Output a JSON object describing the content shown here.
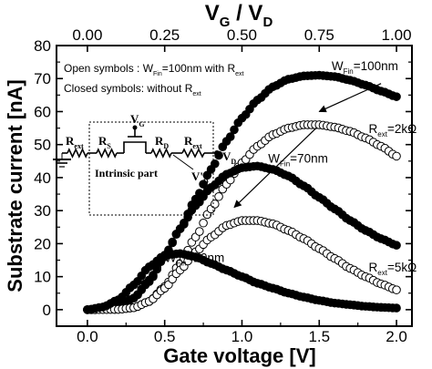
{
  "chart_data": {
    "type": "scatter",
    "xlabel": "Gate voltage [V]",
    "ylabel": "Substrate current [nA]",
    "top_axis_label": {
      "main_v1": "V",
      "sub1": "G",
      "sep": "/",
      "main_v2": "V",
      "sub2": "D"
    },
    "xlim": [
      -0.2,
      2.1
    ],
    "ylim": [
      -5,
      80
    ],
    "xticks": [
      0.0,
      0.5,
      1.0,
      1.5,
      2.0
    ],
    "xtick_labels": [
      "0.0",
      "0.5",
      "1.0",
      "1.5",
      "2.0"
    ],
    "yticks": [
      0,
      10,
      20,
      30,
      40,
      50,
      60,
      70,
      80
    ],
    "ytick_labels": [
      "0",
      "10",
      "20",
      "30",
      "40",
      "50",
      "60",
      "70",
      "80"
    ],
    "top_ticks": [
      0.0,
      0.25,
      0.5,
      0.75,
      1.0
    ],
    "top_tick_labels": [
      "0.00",
      "0.25",
      "0.50",
      "0.75",
      "1.00"
    ],
    "legend_lines": [
      {
        "text": "Open symbols  : W",
        "sub": "Fin",
        "tail": "=100nm with R",
        "sub2": "ext"
      },
      {
        "text": "Closed symbols: without R",
        "sub": "ext",
        "tail": "",
        "sub2": ""
      }
    ],
    "series": [
      {
        "fill": "closed",
        "anchors": [
          [
            0.0,
            0.0
          ],
          [
            0.1,
            0.2
          ],
          [
            0.2,
            1.0
          ],
          [
            0.3,
            3.5
          ],
          [
            0.4,
            8.5
          ],
          [
            0.5,
            16.0
          ],
          [
            0.6,
            24.5
          ],
          [
            0.7,
            33.5
          ],
          [
            0.8,
            42.5
          ],
          [
            0.9,
            51.0
          ],
          [
            1.0,
            58.0
          ],
          [
            1.1,
            63.5
          ],
          [
            1.2,
            67.5
          ],
          [
            1.3,
            69.8
          ],
          [
            1.4,
            70.8
          ],
          [
            1.5,
            71.0
          ],
          [
            1.6,
            70.6
          ],
          [
            1.7,
            69.5
          ],
          [
            1.8,
            68.0
          ],
          [
            1.9,
            66.2
          ],
          [
            2.0,
            64.5
          ]
        ]
      },
      {
        "fill": "open",
        "anchors": [
          [
            0.0,
            0.0
          ],
          [
            0.2,
            0.1
          ],
          [
            0.3,
            0.6
          ],
          [
            0.4,
            2.5
          ],
          [
            0.5,
            7.0
          ],
          [
            0.6,
            14.0
          ],
          [
            0.7,
            22.0
          ],
          [
            0.8,
            30.5
          ],
          [
            0.9,
            38.0
          ],
          [
            1.0,
            44.5
          ],
          [
            1.1,
            49.5
          ],
          [
            1.2,
            53.0
          ],
          [
            1.3,
            55.0
          ],
          [
            1.4,
            56.0
          ],
          [
            1.5,
            56.0
          ],
          [
            1.6,
            55.3
          ],
          [
            1.7,
            54.0
          ],
          [
            1.8,
            52.0
          ],
          [
            1.9,
            49.5
          ],
          [
            2.0,
            46.5
          ]
        ]
      },
      {
        "fill": "closed",
        "anchors": [
          [
            0.0,
            0.0
          ],
          [
            0.1,
            0.2
          ],
          [
            0.2,
            1.0
          ],
          [
            0.3,
            3.5
          ],
          [
            0.4,
            9.0
          ],
          [
            0.5,
            16.5
          ],
          [
            0.6,
            24.5
          ],
          [
            0.7,
            31.5
          ],
          [
            0.8,
            37.0
          ],
          [
            0.9,
            41.0
          ],
          [
            1.0,
            43.0
          ],
          [
            1.1,
            43.5
          ],
          [
            1.2,
            42.5
          ],
          [
            1.3,
            40.5
          ],
          [
            1.4,
            37.5
          ],
          [
            1.5,
            34.0
          ],
          [
            1.6,
            30.5
          ],
          [
            1.7,
            27.0
          ],
          [
            1.8,
            24.0
          ],
          [
            1.9,
            21.5
          ],
          [
            2.0,
            19.5
          ]
        ]
      },
      {
        "fill": "open",
        "anchors": [
          [
            0.0,
            0.0
          ],
          [
            0.2,
            0.1
          ],
          [
            0.3,
            0.6
          ],
          [
            0.4,
            2.5
          ],
          [
            0.5,
            6.5
          ],
          [
            0.6,
            12.0
          ],
          [
            0.7,
            17.5
          ],
          [
            0.8,
            22.0
          ],
          [
            0.9,
            25.5
          ],
          [
            1.0,
            27.0
          ],
          [
            1.1,
            27.0
          ],
          [
            1.2,
            26.0
          ],
          [
            1.3,
            24.0
          ],
          [
            1.4,
            21.5
          ],
          [
            1.5,
            18.5
          ],
          [
            1.6,
            15.5
          ],
          [
            1.7,
            12.5
          ],
          [
            1.8,
            10.0
          ],
          [
            1.9,
            7.8
          ],
          [
            2.0,
            6.0
          ]
        ]
      },
      {
        "fill": "closed",
        "anchors": [
          [
            0.0,
            0.0
          ],
          [
            0.1,
            0.8
          ],
          [
            0.2,
            3.0
          ],
          [
            0.3,
            7.5
          ],
          [
            0.4,
            13.0
          ],
          [
            0.5,
            16.5
          ],
          [
            0.6,
            17.0
          ],
          [
            0.7,
            16.0
          ],
          [
            0.8,
            14.0
          ],
          [
            0.9,
            12.0
          ],
          [
            1.0,
            10.0
          ],
          [
            1.1,
            8.0
          ],
          [
            1.2,
            6.5
          ],
          [
            1.3,
            5.0
          ],
          [
            1.4,
            3.8
          ],
          [
            1.5,
            2.8
          ],
          [
            1.6,
            2.0
          ],
          [
            1.7,
            1.5
          ],
          [
            1.8,
            1.0
          ],
          [
            1.9,
            0.7
          ],
          [
            2.0,
            0.5
          ]
        ]
      }
    ],
    "annotations": [
      {
        "pre": "W",
        "sub": "Fin",
        "post": "=100nm",
        "x": 1.58,
        "y": 72.5
      },
      {
        "pre": "R",
        "sub": "ext",
        "post": "=2kΩ",
        "x": 1.82,
        "y": 53.5
      },
      {
        "pre": "W",
        "sub": "Fin",
        "post": "=70nm",
        "x": 1.17,
        "y": 44.5
      },
      {
        "pre": "W",
        "sub": "Fin",
        "post": "=20nm",
        "x": 0.5,
        "y": 14.5
      },
      {
        "pre": "R",
        "sub": "ext",
        "post": "=5kΩ",
        "x": 1.82,
        "y": 11.5
      }
    ],
    "arrows": [
      {
        "from": [
          1.9,
          68.5
        ],
        "to": [
          1.5,
          60.0
        ]
      },
      {
        "from": [
          1.48,
          55.0
        ],
        "to": [
          0.95,
          31.0
        ]
      }
    ],
    "inset": {
      "labels": [
        {
          "pre": "R",
          "sub": "ext"
        },
        {
          "pre": "R",
          "sub": "S"
        },
        {
          "pre": "V",
          "sub": "G"
        },
        {
          "pre": "R",
          "sub": "D"
        },
        {
          "pre": "R",
          "sub": "ext"
        },
        {
          "pre": "V",
          "sub": "D"
        },
        {
          "pre": "V'",
          "sub": "D"
        }
      ],
      "caption": "Intrinsic part"
    }
  }
}
